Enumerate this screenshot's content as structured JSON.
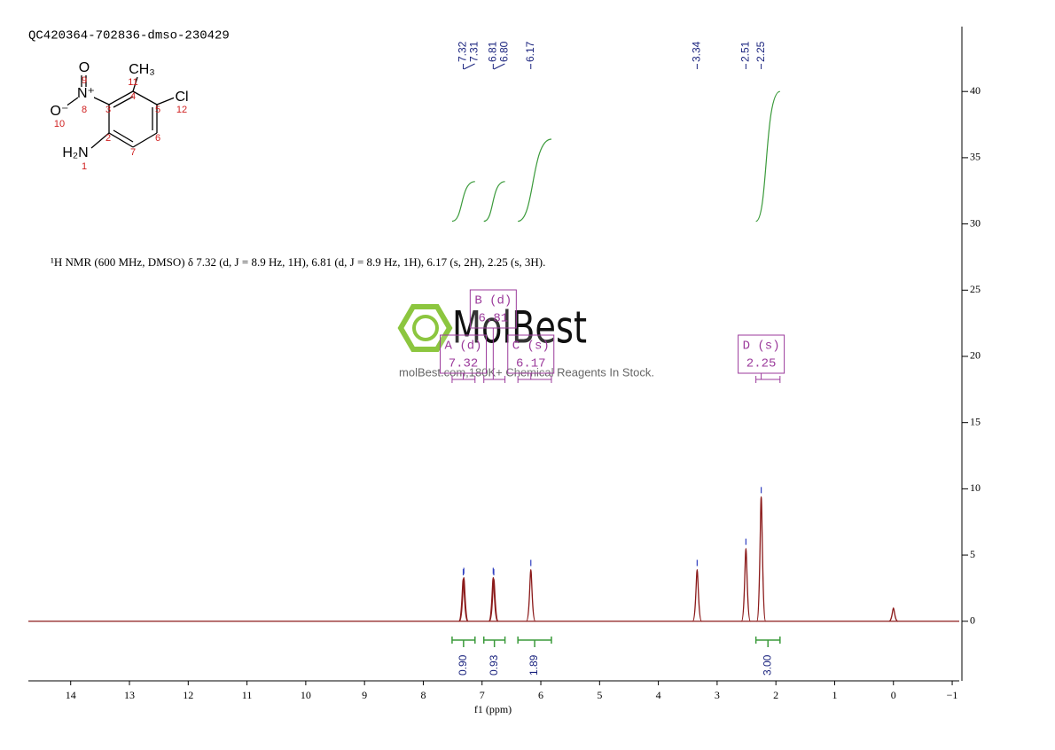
{
  "chart_data": {
    "type": "nmr",
    "title": "QC420364-702836-dmso-230429",
    "xlabel": "f1 (ppm)",
    "xlim": [
      14.72,
      -1.12
    ],
    "ylim": [
      -4.5,
      44.9
    ],
    "xticks": [
      14,
      13,
      12,
      11,
      10,
      9,
      8,
      7,
      6,
      5,
      4,
      3,
      2,
      1,
      0,
      {
        "value": -1,
        "label": "−1"
      }
    ],
    "yticks": [
      0,
      5,
      10,
      15,
      20,
      25,
      30,
      35,
      40
    ],
    "color": "#8b1a1a",
    "x": [
      7.32,
      7.31,
      6.81,
      6.8,
      6.17,
      3.34,
      2.51,
      2.25,
      0.0
    ],
    "values": [
      3.2,
      3.3,
      3.3,
      3.2,
      3.9,
      3.9,
      5.5,
      9.4,
      1.0
    ],
    "peak_labels": [
      7.32,
      7.31,
      6.81,
      {
        "value": 6.8,
        "label": "6.80"
      },
      6.17,
      3.34,
      2.51,
      2.25
    ],
    "peak_label_color": "#1a237e",
    "integrals": {
      "values": [
        0.9,
        0.93,
        1.89,
        3.0
      ],
      "value_labels": [
        "0.90",
        "0.93",
        "1.89",
        "3.00"
      ],
      "ranges": [
        [
          7.51,
          7.12
        ],
        [
          6.97,
          6.61
        ],
        [
          6.39,
          5.82
        ],
        [
          2.34,
          1.93
        ]
      ],
      "curves": [
        [
          30.2,
          33.2
        ],
        [
          30.2,
          33.2
        ],
        [
          30.2,
          36.4
        ],
        [
          30.2,
          40
        ]
      ],
      "color": "#3a9a3a"
    },
    "multiplets": [
      {
        "label": "A (d)",
        "shift": 7.32,
        "range": [
          7.51,
          7.12
        ]
      },
      {
        "label": "B (d)",
        "shift": 6.81,
        "range": [
          6.97,
          6.61
        ]
      },
      {
        "label": "C (s)",
        "shift": 6.17,
        "range": [
          6.39,
          5.82
        ]
      },
      {
        "label": "D (s)",
        "shift": 2.25,
        "range": [
          2.34,
          1.93
        ]
      }
    ],
    "multiplet_color": "#9b3a9b",
    "description": "¹H NMR (600 MHz, DMSO) δ 7.32 (d, J = 8.9 Hz, 1H), 6.81 (d, J = 8.9 Hz, 1H), 6.17 (s, 2H), 2.25 (s, 3H).",
    "molecule": {
      "atoms": [
        "O",
        "N⁺",
        "CH₃",
        "Cl",
        "O⁻",
        "H₂N"
      ],
      "numbers": [
        "9",
        "8",
        "11",
        "12",
        "10",
        "1",
        "3",
        "4",
        "5",
        "2",
        "6",
        "7"
      ]
    },
    "watermark": {
      "brand": "MolBest",
      "tagline": "molBest.com,180K+ Chemical Reagents In Stock."
    }
  }
}
